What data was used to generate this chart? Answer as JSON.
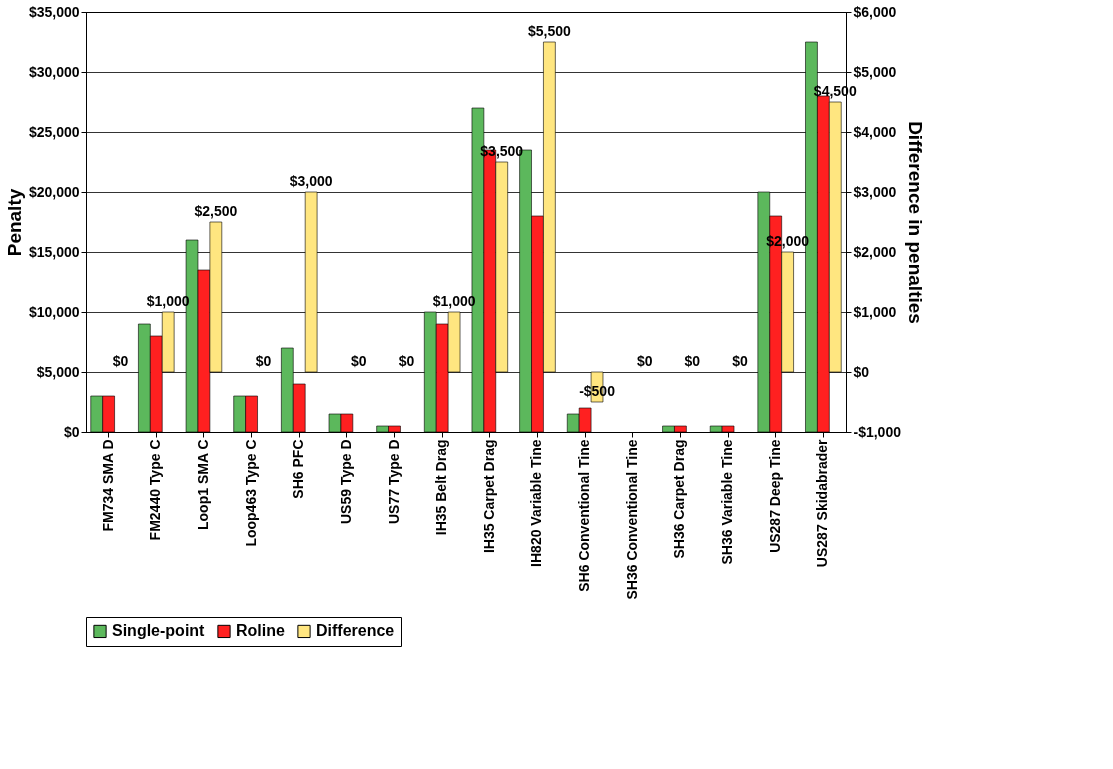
{
  "chart_data": {
    "type": "bar",
    "ylabel": "Penalty",
    "y2label": "Difference in penalties",
    "categories": [
      "FM734 SMA D",
      "FM2440 Type C",
      "Loop1 SMA C",
      "Loop463 Type C",
      "SH6 PFC",
      "US59 Type D",
      "US77 Type D",
      "IH35 Belt Drag",
      "IH35 Carpet Drag",
      "IH820 Variable Tine",
      "SH6 Conventional Tine",
      "SH36 Conventional Tine",
      "SH36 Carpet Drag",
      "SH36 Variable Tine",
      "US287 Deep Tine",
      "US287 Skidabrader"
    ],
    "series": [
      {
        "name": "Single-point",
        "color": "#5cb85c",
        "values": [
          3000,
          9000,
          16000,
          3000,
          7000,
          1500,
          500,
          10000,
          27000,
          23500,
          1500,
          0,
          500,
          500,
          20000,
          32500
        ]
      },
      {
        "name": "Roline",
        "color": "#ff2020",
        "values": [
          3000,
          8000,
          13500,
          3000,
          4000,
          1500,
          500,
          9000,
          23500,
          18000,
          2000,
          0,
          500,
          500,
          18000,
          28000
        ]
      },
      {
        "name": "Difference",
        "color": "#ffe680",
        "axis": "y2",
        "values": [
          0,
          1000,
          2500,
          0,
          3000,
          0,
          0,
          1000,
          3500,
          5500,
          -500,
          0,
          0,
          0,
          2000,
          4500
        ],
        "value_labels": [
          "$0",
          "$1,000",
          "$2,500",
          "$0",
          "$3,000",
          "$0",
          "$0",
          "$1,000",
          "$3,500",
          "$5,500",
          "-$500",
          "$0",
          "$0",
          "$0",
          "$2,000",
          "$4,500"
        ]
      }
    ],
    "ylim": [
      0,
      35000
    ],
    "yticks": [
      {
        "value": 0,
        "label": "$0"
      },
      {
        "value": 5000,
        "label": "$5,000"
      },
      {
        "value": 10000,
        "label": "$10,000"
      },
      {
        "value": 15000,
        "label": "$15,000"
      },
      {
        "value": 20000,
        "label": "$20,000"
      },
      {
        "value": 25000,
        "label": "$25,000"
      },
      {
        "value": 30000,
        "label": "$30,000"
      },
      {
        "value": 35000,
        "label": "$35,000"
      }
    ],
    "y2lim": [
      -1000,
      6000
    ],
    "y2ticks": [
      {
        "value": -1000,
        "label": "-$1,000"
      },
      {
        "value": 0,
        "label": "$0"
      },
      {
        "value": 1000,
        "label": "$1,000"
      },
      {
        "value": 2000,
        "label": "$2,000"
      },
      {
        "value": 3000,
        "label": "$3,000"
      },
      {
        "value": 4000,
        "label": "$4,000"
      },
      {
        "value": 5000,
        "label": "$5,000"
      },
      {
        "value": 6000,
        "label": "$6,000"
      }
    ],
    "grid": "y",
    "legend": "bottom"
  }
}
